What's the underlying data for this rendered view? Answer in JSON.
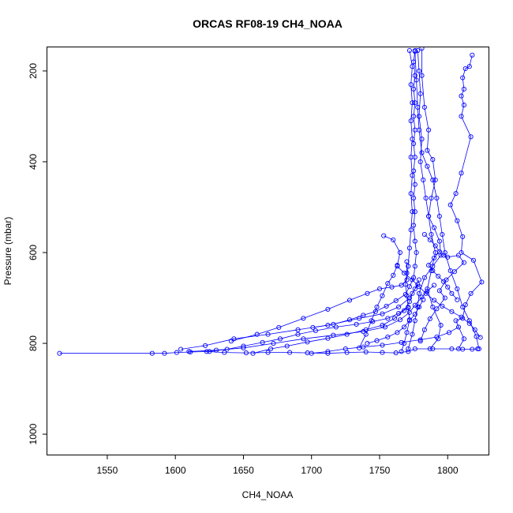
{
  "chart_data": {
    "type": "line",
    "title": "ORCAS RF08-19 CH4_NOAA",
    "xlabel": "CH4_NOAA",
    "ylabel": "Pressure (mbar)",
    "xlim": [
      1506,
      1830
    ],
    "ylim": [
      1045,
      148
    ],
    "y_reversed": true,
    "xticks": [
      1550,
      1600,
      1650,
      1700,
      1750,
      1800
    ],
    "yticks": [
      200,
      400,
      600,
      800,
      1000
    ],
    "grid": false,
    "legend": "none",
    "color": "#0000ff",
    "marker": "open-circle",
    "series": [
      {
        "points": [
          [
            1515,
            822
          ],
          [
            1583,
            822
          ],
          [
            1592,
            822
          ],
          [
            1601,
            820
          ],
          [
            1611,
            819
          ],
          [
            1623,
            818
          ],
          [
            1636,
            820
          ],
          [
            1652,
            821
          ],
          [
            1668,
            820
          ],
          [
            1684,
            820
          ],
          [
            1697,
            821
          ],
          [
            1712,
            822
          ],
          [
            1726,
            820
          ],
          [
            1740,
            819
          ],
          [
            1752,
            820
          ],
          [
            1762,
            821
          ],
          [
            1771,
            818
          ],
          [
            1776,
            812
          ],
          [
            1789,
            812
          ],
          [
            1803,
            812
          ],
          [
            1811,
            813
          ],
          [
            1818,
            813
          ],
          [
            1822,
            812
          ]
        ]
      },
      {
        "points": [
          [
            1604,
            813
          ],
          [
            1622,
            805
          ],
          [
            1643,
            790
          ],
          [
            1668,
            780
          ],
          [
            1690,
            770
          ],
          [
            1712,
            760
          ],
          [
            1735,
            745
          ],
          [
            1752,
            735
          ],
          [
            1764,
            720
          ],
          [
            1772,
            700
          ],
          [
            1776,
            680
          ],
          [
            1779,
            660
          ]
        ]
      },
      {
        "points": [
          [
            1701,
            765
          ],
          [
            1716,
            758
          ],
          [
            1728,
            748
          ],
          [
            1738,
            738
          ],
          [
            1747,
            730
          ],
          [
            1755,
            718
          ],
          [
            1762,
            706
          ],
          [
            1769,
            692
          ],
          [
            1772,
            675
          ],
          [
            1775,
            655
          ],
          [
            1776,
            630
          ],
          [
            1777,
            600
          ],
          [
            1776,
            575
          ],
          [
            1775,
            540
          ],
          [
            1776,
            510
          ],
          [
            1775,
            480
          ],
          [
            1776,
            450
          ],
          [
            1775,
            420
          ],
          [
            1776,
            390
          ],
          [
            1775,
            360
          ],
          [
            1776,
            330
          ],
          [
            1775,
            300
          ],
          [
            1776,
            270
          ],
          [
            1775,
            240
          ],
          [
            1776,
            210
          ],
          [
            1775,
            180
          ],
          [
            1776,
            155
          ]
        ]
      },
      {
        "points": [
          [
            1772,
            155
          ],
          [
            1774,
            190
          ],
          [
            1773,
            230
          ],
          [
            1774,
            270
          ],
          [
            1773,
            310
          ],
          [
            1774,
            350
          ],
          [
            1773,
            390
          ],
          [
            1774,
            430
          ],
          [
            1773,
            470
          ],
          [
            1774,
            510
          ],
          [
            1773,
            550
          ],
          [
            1772,
            590
          ],
          [
            1771,
            630
          ],
          [
            1770,
            660
          ],
          [
            1766,
            672
          ],
          [
            1759,
            676
          ],
          [
            1750,
            680
          ],
          [
            1741,
            690
          ],
          [
            1728,
            705
          ],
          [
            1712,
            725
          ],
          [
            1694,
            745
          ],
          [
            1676,
            765
          ],
          [
            1660,
            780
          ],
          [
            1641,
            795
          ]
        ]
      },
      {
        "points": [
          [
            1778,
            155
          ],
          [
            1779,
            200
          ],
          [
            1780,
            250
          ],
          [
            1779,
            300
          ],
          [
            1781,
            350
          ],
          [
            1780,
            400
          ],
          [
            1782,
            440
          ],
          [
            1784,
            480
          ],
          [
            1786,
            520
          ],
          [
            1788,
            560
          ],
          [
            1791,
            600
          ],
          [
            1788,
            640
          ],
          [
            1785,
            680
          ],
          [
            1789,
            720
          ],
          [
            1795,
            760
          ],
          [
            1793,
            790
          ],
          [
            1787,
            812
          ]
        ]
      },
      {
        "points": [
          [
            1776,
            157
          ],
          [
            1777,
            220
          ],
          [
            1778,
            280
          ],
          [
            1779,
            330
          ],
          [
            1781,
            380
          ],
          [
            1785,
            410
          ],
          [
            1789,
            440
          ],
          [
            1792,
            480
          ],
          [
            1794,
            520
          ],
          [
            1796,
            560
          ],
          [
            1798,
            600
          ],
          [
            1802,
            640
          ],
          [
            1807,
            680
          ],
          [
            1811,
            720
          ],
          [
            1816,
            750
          ],
          [
            1821,
            785
          ],
          [
            1823,
            812
          ]
        ]
      },
      {
        "points": [
          [
            1818,
            165
          ],
          [
            1816,
            190
          ],
          [
            1813,
            195
          ],
          [
            1811,
            215
          ],
          [
            1812,
            240
          ],
          [
            1810,
            255
          ],
          [
            1812,
            275
          ],
          [
            1810,
            300
          ],
          [
            1817,
            345
          ],
          [
            1810,
            425
          ],
          [
            1806,
            470
          ],
          [
            1802,
            495
          ],
          [
            1807,
            530
          ],
          [
            1811,
            565
          ],
          [
            1810,
            600
          ],
          [
            1819,
            617
          ],
          [
            1825,
            665
          ],
          [
            1817,
            690
          ],
          [
            1813,
            715
          ],
          [
            1811,
            745
          ],
          [
            1806,
            750
          ],
          [
            1812,
            790
          ],
          [
            1808,
            812
          ]
        ]
      },
      {
        "points": [
          [
            1781,
            150
          ],
          [
            1781,
            210
          ],
          [
            1783,
            280
          ],
          [
            1786,
            330
          ],
          [
            1785,
            375
          ],
          [
            1789,
            395
          ],
          [
            1791,
            440
          ],
          [
            1788,
            480
          ],
          [
            1786,
            520
          ],
          [
            1790,
            545
          ],
          [
            1794,
            575
          ],
          [
            1795,
            606
          ],
          [
            1789,
            630
          ],
          [
            1783,
            655
          ],
          [
            1779,
            690
          ],
          [
            1778,
            720
          ],
          [
            1776,
            750
          ],
          [
            1774,
            780
          ],
          [
            1771,
            812
          ]
        ]
      },
      {
        "points": [
          [
            1657,
            822
          ],
          [
            1670,
            812
          ],
          [
            1682,
            806
          ],
          [
            1697,
            797
          ],
          [
            1712,
            789
          ],
          [
            1726,
            780
          ],
          [
            1740,
            770
          ],
          [
            1752,
            760
          ],
          [
            1761,
            745
          ],
          [
            1768,
            728
          ],
          [
            1772,
            708
          ],
          [
            1774,
            690
          ],
          [
            1778,
            670
          ]
        ]
      },
      {
        "points": [
          [
            1610,
            818
          ],
          [
            1630,
            815
          ],
          [
            1650,
            810
          ],
          [
            1672,
            800
          ],
          [
            1694,
            790
          ],
          [
            1716,
            782
          ],
          [
            1738,
            774
          ],
          [
            1754,
            764
          ],
          [
            1765,
            748
          ],
          [
            1772,
            732
          ],
          [
            1776,
            716
          ],
          [
            1781,
            698
          ],
          [
            1785,
            685
          ],
          [
            1790,
            672
          ]
        ]
      },
      {
        "points": [
          [
            1753,
            563
          ],
          [
            1760,
            572
          ],
          [
            1765,
            600
          ],
          [
            1763,
            628
          ],
          [
            1760,
            650
          ],
          [
            1756,
            668
          ],
          [
            1752,
            695
          ],
          [
            1748,
            720
          ],
          [
            1744,
            750
          ],
          [
            1740,
            780
          ],
          [
            1735,
            810
          ]
        ]
      },
      {
        "points": [
          [
            1763,
            630
          ],
          [
            1768,
            645
          ],
          [
            1774,
            660
          ],
          [
            1779,
            675
          ],
          [
            1784,
            690
          ],
          [
            1790,
            705
          ],
          [
            1796,
            718
          ],
          [
            1803,
            730
          ],
          [
            1810,
            742
          ],
          [
            1816,
            756
          ],
          [
            1820,
            770
          ],
          [
            1824,
            787
          ]
        ]
      },
      {
        "points": [
          [
            1797,
            606
          ],
          [
            1800,
            610
          ],
          [
            1808,
            606
          ],
          [
            1812,
            622
          ],
          [
            1805,
            642
          ],
          [
            1799,
            660
          ],
          [
            1794,
            684
          ],
          [
            1798,
            700
          ],
          [
            1792,
            724
          ],
          [
            1787,
            746
          ],
          [
            1783,
            770
          ],
          [
            1780,
            795
          ]
        ]
      },
      {
        "points": [
          [
            1771,
            720
          ],
          [
            1764,
            734
          ],
          [
            1756,
            745
          ],
          [
            1745,
            752
          ],
          [
            1733,
            758
          ],
          [
            1718,
            764
          ],
          [
            1703,
            772
          ],
          [
            1690,
            780
          ],
          [
            1677,
            790
          ],
          [
            1664,
            798
          ],
          [
            1650,
            806
          ],
          [
            1638,
            813
          ],
          [
            1625,
            818
          ]
        ]
      },
      {
        "points": [
          [
            1783,
            560
          ],
          [
            1787,
            572
          ],
          [
            1791,
            585
          ],
          [
            1794,
            598
          ],
          [
            1790,
            612
          ],
          [
            1786,
            628
          ],
          [
            1789,
            640
          ],
          [
            1793,
            652
          ],
          [
            1797,
            664
          ],
          [
            1800,
            676
          ],
          [
            1803,
            690
          ],
          [
            1807,
            704
          ]
        ]
      },
      {
        "points": [
          [
            1770,
            620
          ],
          [
            1770,
            645
          ],
          [
            1769,
            670
          ],
          [
            1770,
            695
          ],
          [
            1771,
            722
          ],
          [
            1772,
            748
          ],
          [
            1770,
            776
          ],
          [
            1768,
            800
          ],
          [
            1766,
            818
          ]
        ]
      },
      {
        "points": [
          [
            1741,
            800
          ],
          [
            1748,
            794
          ],
          [
            1756,
            786
          ],
          [
            1763,
            776
          ],
          [
            1768,
            764
          ],
          [
            1772,
            750
          ],
          [
            1776,
            736
          ],
          [
            1779,
            720
          ],
          [
            1782,
            704
          ]
        ]
      },
      {
        "points": [
          [
            1700,
            822
          ],
          [
            1712,
            818
          ],
          [
            1725,
            812
          ],
          [
            1738,
            808
          ],
          [
            1752,
            804
          ],
          [
            1766,
            798
          ],
          [
            1780,
            792
          ],
          [
            1792,
            786
          ],
          [
            1801,
            776
          ],
          [
            1808,
            764
          ]
        ]
      }
    ]
  }
}
